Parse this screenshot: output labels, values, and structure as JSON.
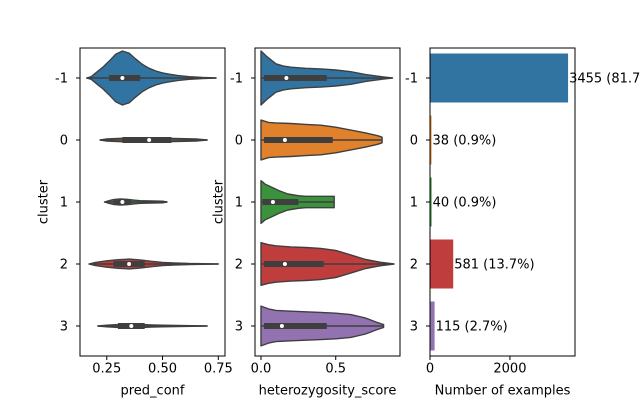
{
  "chart_data": [
    {
      "type": "violin",
      "xlabel": "pred_conf",
      "ylabel": "cluster",
      "categories": [
        "-1",
        "0",
        "1",
        "2",
        "3"
      ],
      "xlim": [
        0.13,
        0.78
      ],
      "xticks": [
        0.25,
        0.5,
        0.75
      ],
      "xtick_labels": [
        "0.25",
        "0.50",
        "0.75"
      ],
      "series": [
        {
          "category": "-1",
          "min": 0.16,
          "q1": 0.26,
          "median": 0.32,
          "q3": 0.4,
          "max": 0.74,
          "density": [
            [
              0.16,
              0.0
            ],
            [
              0.18,
              0.05
            ],
            [
              0.2,
              0.18
            ],
            [
              0.23,
              0.38
            ],
            [
              0.26,
              0.62
            ],
            [
              0.29,
              0.88
            ],
            [
              0.32,
              1.0
            ],
            [
              0.35,
              0.92
            ],
            [
              0.38,
              0.7
            ],
            [
              0.41,
              0.5
            ],
            [
              0.44,
              0.36
            ],
            [
              0.47,
              0.26
            ],
            [
              0.5,
              0.19
            ],
            [
              0.53,
              0.14
            ],
            [
              0.57,
              0.09
            ],
            [
              0.62,
              0.05
            ],
            [
              0.68,
              0.02
            ],
            [
              0.74,
              0.0
            ]
          ]
        },
        {
          "category": "0",
          "min": 0.22,
          "q1": 0.32,
          "median": 0.44,
          "q3": 0.54,
          "max": 0.7,
          "density": [
            [
              0.22,
              0.0
            ],
            [
              0.25,
              0.04
            ],
            [
              0.3,
              0.06
            ],
            [
              0.35,
              0.07
            ],
            [
              0.4,
              0.08
            ],
            [
              0.45,
              0.08
            ],
            [
              0.5,
              0.07
            ],
            [
              0.55,
              0.06
            ],
            [
              0.6,
              0.05
            ],
            [
              0.65,
              0.04
            ],
            [
              0.7,
              0.0
            ]
          ]
        },
        {
          "category": "1",
          "min": 0.24,
          "q1": 0.28,
          "median": 0.32,
          "q3": 0.36,
          "max": 0.52,
          "density": [
            [
              0.24,
              0.0
            ],
            [
              0.26,
              0.05
            ],
            [
              0.28,
              0.09
            ],
            [
              0.31,
              0.11
            ],
            [
              0.34,
              0.1
            ],
            [
              0.37,
              0.07
            ],
            [
              0.4,
              0.05
            ],
            [
              0.45,
              0.04
            ],
            [
              0.5,
              0.03
            ],
            [
              0.52,
              0.0
            ]
          ]
        },
        {
          "category": "2",
          "min": 0.18,
          "q1": 0.28,
          "median": 0.35,
          "q3": 0.42,
          "max": 0.75,
          "density": [
            [
              0.17,
              0.0
            ],
            [
              0.2,
              0.06
            ],
            [
              0.25,
              0.12
            ],
            [
              0.3,
              0.16
            ],
            [
              0.35,
              0.18
            ],
            [
              0.4,
              0.15
            ],
            [
              0.45,
              0.1
            ],
            [
              0.5,
              0.06
            ],
            [
              0.55,
              0.04
            ],
            [
              0.62,
              0.02
            ],
            [
              0.68,
              0.01
            ],
            [
              0.75,
              0.0
            ]
          ]
        },
        {
          "category": "3",
          "min": 0.21,
          "q1": 0.3,
          "median": 0.36,
          "q3": 0.42,
          "max": 0.7,
          "density": [
            [
              0.21,
              0.0
            ],
            [
              0.25,
              0.03
            ],
            [
              0.3,
              0.05
            ],
            [
              0.35,
              0.07
            ],
            [
              0.4,
              0.06
            ],
            [
              0.45,
              0.04
            ],
            [
              0.5,
              0.03
            ],
            [
              0.6,
              0.015
            ],
            [
              0.7,
              0.0
            ]
          ]
        }
      ]
    },
    {
      "type": "violin",
      "xlabel": "heterozygosity_score",
      "ylabel": "cluster",
      "categories": [
        "-1",
        "0",
        "1",
        "2",
        "3"
      ],
      "xlim": [
        -0.04,
        0.93
      ],
      "xticks": [
        0.0,
        0.5
      ],
      "xtick_labels": [
        "0.0",
        "0.5"
      ],
      "series": [
        {
          "category": "-1",
          "min": 0.0,
          "q1": 0.02,
          "median": 0.17,
          "q3": 0.44,
          "max": 0.88,
          "density": [
            [
              0.0,
              0.95
            ],
            [
              0.04,
              0.75
            ],
            [
              0.1,
              0.5
            ],
            [
              0.15,
              0.42
            ],
            [
              0.2,
              0.38
            ],
            [
              0.3,
              0.34
            ],
            [
              0.4,
              0.32
            ],
            [
              0.5,
              0.28
            ],
            [
              0.6,
              0.22
            ],
            [
              0.7,
              0.12
            ],
            [
              0.8,
              0.05
            ],
            [
              0.88,
              0.0
            ]
          ]
        },
        {
          "category": "0",
          "min": 0.0,
          "q1": 0.02,
          "median": 0.16,
          "q3": 0.48,
          "max": 0.81,
          "density": [
            [
              0.0,
              0.7
            ],
            [
              0.05,
              0.62
            ],
            [
              0.1,
              0.6
            ],
            [
              0.2,
              0.58
            ],
            [
              0.3,
              0.55
            ],
            [
              0.4,
              0.52
            ],
            [
              0.5,
              0.45
            ],
            [
              0.6,
              0.35
            ],
            [
              0.7,
              0.25
            ],
            [
              0.78,
              0.15
            ],
            [
              0.81,
              0.1
            ]
          ]
        },
        {
          "category": "1",
          "min": 0.0,
          "q1": 0.01,
          "median": 0.08,
          "q3": 0.25,
          "max": 0.49,
          "density": [
            [
              0.0,
              0.75
            ],
            [
              0.03,
              0.62
            ],
            [
              0.08,
              0.5
            ],
            [
              0.12,
              0.4
            ],
            [
              0.18,
              0.28
            ],
            [
              0.25,
              0.22
            ],
            [
              0.3,
              0.2
            ],
            [
              0.4,
              0.2
            ],
            [
              0.49,
              0.2
            ]
          ]
        },
        {
          "category": "2",
          "min": 0.0,
          "q1": 0.02,
          "median": 0.16,
          "q3": 0.42,
          "max": 0.89,
          "density": [
            [
              0.0,
              0.75
            ],
            [
              0.05,
              0.68
            ],
            [
              0.1,
              0.64
            ],
            [
              0.2,
              0.6
            ],
            [
              0.3,
              0.58
            ],
            [
              0.4,
              0.55
            ],
            [
              0.5,
              0.48
            ],
            [
              0.6,
              0.32
            ],
            [
              0.7,
              0.16
            ],
            [
              0.8,
              0.06
            ],
            [
              0.89,
              0.0
            ]
          ]
        },
        {
          "category": "3",
          "min": 0.0,
          "q1": 0.02,
          "median": 0.14,
          "q3": 0.44,
          "max": 0.82,
          "density": [
            [
              0.0,
              0.7
            ],
            [
              0.05,
              0.6
            ],
            [
              0.1,
              0.55
            ],
            [
              0.2,
              0.52
            ],
            [
              0.3,
              0.5
            ],
            [
              0.4,
              0.48
            ],
            [
              0.5,
              0.45
            ],
            [
              0.6,
              0.4
            ],
            [
              0.7,
              0.28
            ],
            [
              0.78,
              0.12
            ],
            [
              0.82,
              0.05
            ]
          ]
        }
      ]
    },
    {
      "type": "bar",
      "orientation": "horizontal",
      "xlabel": "Number of examples",
      "ylabel": "",
      "categories": [
        "-1",
        "0",
        "1",
        "2",
        "3"
      ],
      "values": [
        3455,
        38,
        40,
        581,
        115
      ],
      "data_labels": [
        "3455 (81.7",
        "38 (0.9%)",
        "40 (0.9%)",
        "581 (13.7%)",
        "115 (2.7%)"
      ],
      "xlim": [
        0,
        3628
      ],
      "xticks": [
        0,
        2000
      ],
      "xtick_labels": [
        "0",
        "2000"
      ]
    }
  ],
  "colors": [
    "#3274a1",
    "#e1812c",
    "#3a923a",
    "#c03d3e",
    "#9372b2"
  ]
}
